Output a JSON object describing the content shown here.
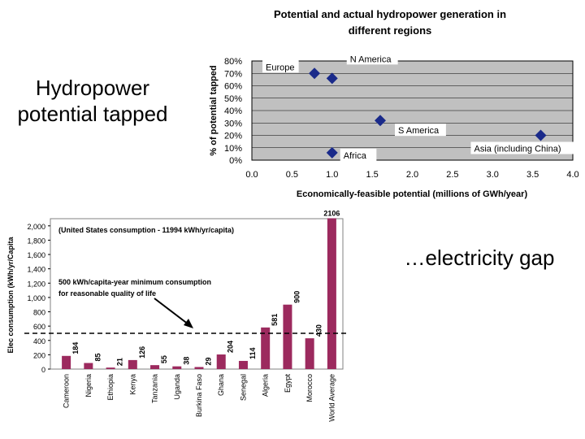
{
  "slide": {
    "left_heading": "Hydropower potential tapped",
    "right_heading": "…electricity gap"
  },
  "chart_data": [
    {
      "type": "scatter",
      "title": "Potential and actual hydropower generation in different regions",
      "xlabel": "Economically-feasible potential (millions of GWh/year)",
      "ylabel": "% of potential tapped",
      "xlim": [
        0,
        4
      ],
      "ylim": [
        0,
        80
      ],
      "x_ticks": [
        "0.0",
        "0.5",
        "1.0",
        "1.5",
        "2.0",
        "2.5",
        "3.0",
        "3.5",
        "4.0"
      ],
      "y_ticks": [
        "0%",
        "10%",
        "20%",
        "30%",
        "40%",
        "50%",
        "60%",
        "70%",
        "80%"
      ],
      "grid": true,
      "plot_background": "#c0c0c0",
      "marker_color": "#1a2a8a",
      "points": [
        {
          "label": "Europe",
          "x": 0.78,
          "y": 70
        },
        {
          "label": "N America",
          "x": 1.0,
          "y": 66
        },
        {
          "label": "S America",
          "x": 1.6,
          "y": 32
        },
        {
          "label": "Africa",
          "x": 1.0,
          "y": 6
        },
        {
          "label": "Asia (including China)",
          "x": 3.6,
          "y": 20
        }
      ]
    },
    {
      "type": "bar",
      "ylabel": "Elec consumption (kWh/yr/Capita",
      "ylim": [
        0,
        2100
      ],
      "y_ticks": [
        "0",
        "200",
        "400",
        "600",
        "800",
        "1,000",
        "1,200",
        "1,400",
        "1,600",
        "1,800",
        "2,000"
      ],
      "bar_color": "#9c2a5e",
      "categories": [
        "Cameroon",
        "Nigeria",
        "Ethiopia",
        "Kenya",
        "Tanzania",
        "Uganda",
        "Burkina Faso",
        "Ghana",
        "Senegal",
        "Algeria",
        "Egypt",
        "Morocco",
        "World Average"
      ],
      "values": [
        184,
        85,
        21,
        126,
        55,
        38,
        29,
        204,
        114,
        581,
        900,
        430,
        2106
      ],
      "value_labels": [
        "184",
        "85",
        "21",
        "126",
        "55",
        "38",
        "29",
        "204",
        "114",
        "581",
        "900",
        "430",
        "2106"
      ],
      "annotations": {
        "us_note": "(United States consumption - 11994 kWh/yr/capita)",
        "threshold_line1": "500 kWh/capita-year minimum consumption",
        "threshold_line2": "for reasonable quality of life",
        "threshold_value": 500
      }
    }
  ]
}
